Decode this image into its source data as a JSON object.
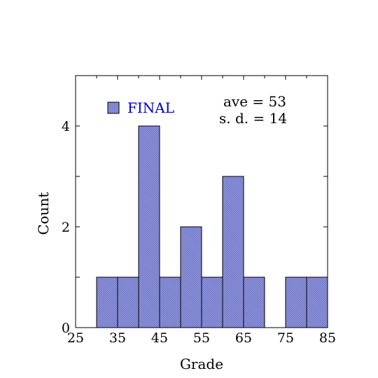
{
  "chart_data": {
    "type": "bar",
    "title": "",
    "xlabel": "Grade",
    "ylabel": "Count",
    "bin_width": 5,
    "bins": [
      {
        "x0": 30,
        "x1": 35,
        "count": 1
      },
      {
        "x0": 35,
        "x1": 40,
        "count": 1
      },
      {
        "x0": 40,
        "x1": 45,
        "count": 4
      },
      {
        "x0": 45,
        "x1": 50,
        "count": 1
      },
      {
        "x0": 50,
        "x1": 55,
        "count": 2
      },
      {
        "x0": 55,
        "x1": 60,
        "count": 1
      },
      {
        "x0": 60,
        "x1": 65,
        "count": 3
      },
      {
        "x0": 65,
        "x1": 70,
        "count": 1
      },
      {
        "x0": 70,
        "x1": 75,
        "count": 0
      },
      {
        "x0": 75,
        "x1": 80,
        "count": 1
      },
      {
        "x0": 80,
        "x1": 85,
        "count": 1
      }
    ],
    "xlim": [
      25,
      85
    ],
    "ylim": [
      0,
      5
    ],
    "xticks": [
      25,
      35,
      45,
      55,
      65,
      75,
      85
    ],
    "yticks": [
      0,
      2,
      4
    ],
    "grid": false,
    "legend": {
      "placement": "top-left",
      "label": "FINAL"
    },
    "bar_color": "#8c92d8",
    "legend_text_color": "#0000cc",
    "stats": {
      "ave_label": "ave = 53",
      "sd_label": "s. d. = 14"
    }
  }
}
